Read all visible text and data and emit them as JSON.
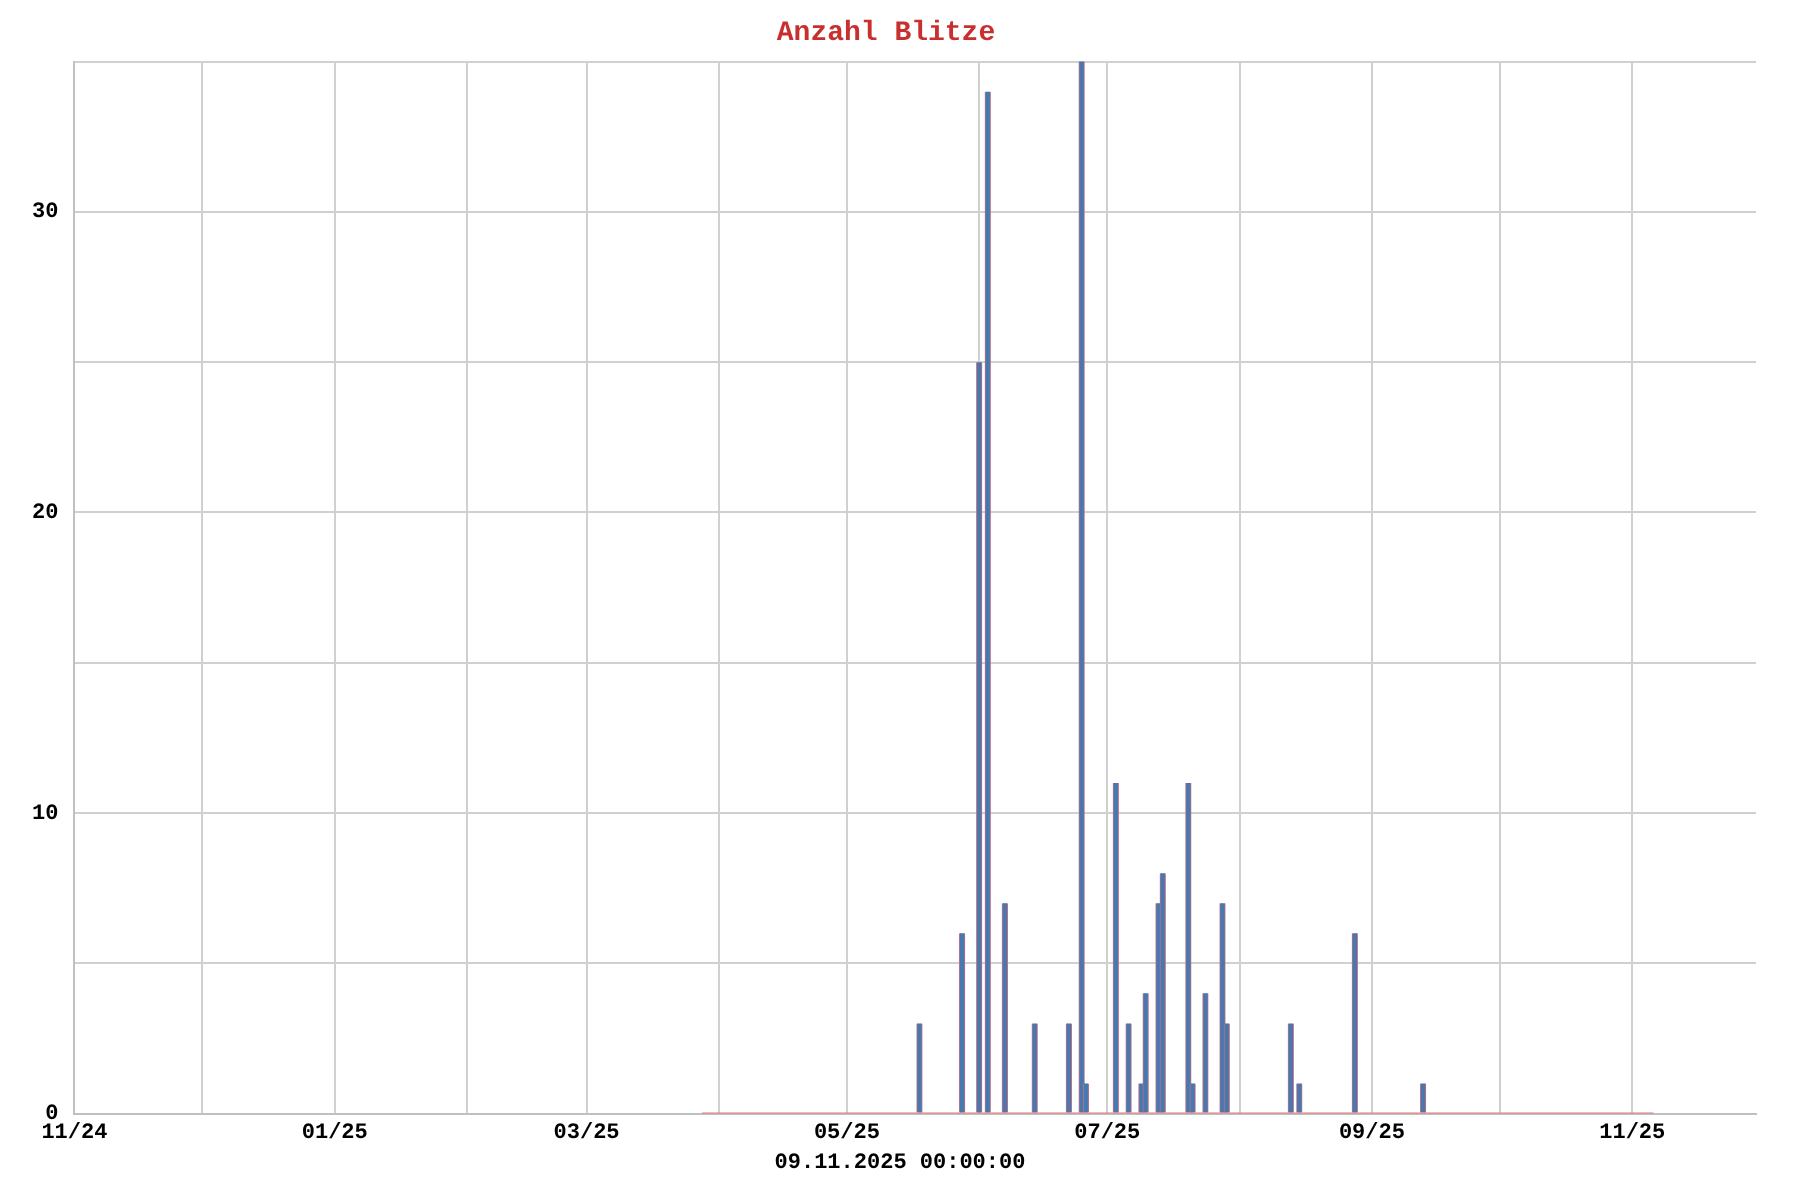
{
  "chart_data": {
    "type": "bar",
    "title": "Anzahl Blitze",
    "annotations": [
      "09.11.2025 00:00:00"
    ],
    "grid": true,
    "legend": false,
    "xlim": [
      "2024-11-01",
      "2025-11-30"
    ],
    "xticks": [
      {
        "value": "2024-11-01",
        "label": "11/24"
      },
      {
        "value": "2024-12-01",
        "label": null
      },
      {
        "value": "2025-01-01",
        "label": "01/25"
      },
      {
        "value": "2025-02-01",
        "label": null
      },
      {
        "value": "2025-03-01",
        "label": "03/25"
      },
      {
        "value": "2025-04-01",
        "label": null
      },
      {
        "value": "2025-05-01",
        "label": "05/25"
      },
      {
        "value": "2025-06-01",
        "label": null
      },
      {
        "value": "2025-07-01",
        "label": "07/25"
      },
      {
        "value": "2025-08-01",
        "label": null
      },
      {
        "value": "2025-09-01",
        "label": "09/25"
      },
      {
        "value": "2025-10-01",
        "label": null
      },
      {
        "value": "2025-11-01",
        "label": "11/25"
      }
    ],
    "ylim": [
      0,
      35
    ],
    "yticks": [
      0,
      {
        "value": 5,
        "label": null
      },
      10,
      {
        "value": 15,
        "label": null
      },
      20,
      {
        "value": 25,
        "label": null
      },
      30,
      {
        "value": 35,
        "label": null
      }
    ],
    "series": [
      {
        "color": "#4878b0",
        "x": [
          "2025-05-18",
          "2025-05-28",
          "2025-06-01",
          "2025-06-03",
          "2025-06-07",
          "2025-06-14",
          "2025-06-22",
          "2025-06-25",
          "2025-06-26",
          "2025-07-03",
          "2025-07-06",
          "2025-07-09",
          "2025-07-10",
          "2025-07-13",
          "2025-07-14",
          "2025-07-20",
          "2025-07-21",
          "2025-07-24",
          "2025-07-28",
          "2025-07-29",
          "2025-08-13",
          "2025-08-15",
          "2025-08-28",
          "2025-09-13"
        ],
        "values": [
          3,
          6,
          25,
          34,
          7,
          3,
          3,
          35,
          1,
          11,
          3,
          1,
          4,
          7,
          8,
          11,
          1,
          4,
          7,
          3,
          3,
          1,
          6,
          1
        ]
      },
      {
        "type": "line",
        "color": "#e07878",
        "x": [
          "2025-03-28",
          "2025-11-06"
        ],
        "values": [
          0,
          0
        ]
      }
    ]
  }
}
